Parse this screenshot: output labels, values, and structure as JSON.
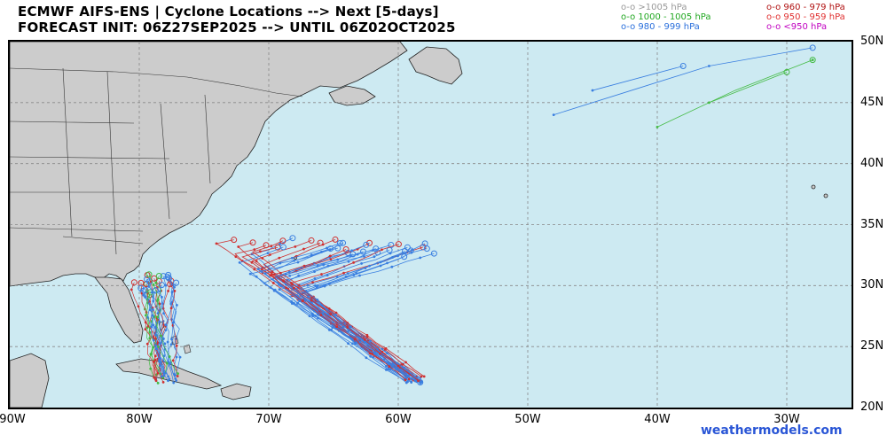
{
  "header": {
    "title_line1": "ECMWF AIFS-ENS | Cyclone Locations --> Next [5-days]",
    "title_line2": "FORECAST INIT: 06Z27SEP2025 --> UNTIL 06Z02OCT2025"
  },
  "legend": {
    "left": [
      {
        "marker": "o-o",
        "label": ">1005 hPa",
        "color": "#999999"
      },
      {
        "marker": "o-o",
        "label": "1000 - 1005 hPa",
        "color": "#22a822"
      },
      {
        "marker": "o-o",
        "label": "980 - 999 hPa",
        "color": "#2a6fdc"
      }
    ],
    "right": [
      {
        "marker": "o-o",
        "label": "960 - 979 hPa",
        "color": "#b01010"
      },
      {
        "marker": "o-o",
        "label": "950 - 959 hPa",
        "color": "#e03030"
      },
      {
        "marker": "o-o",
        "label": "<950 hPa",
        "color": "#c000c0"
      }
    ]
  },
  "colors": {
    "ocean": "#cdeaf2",
    "land": "#cccccc",
    "grid": "#888888",
    "track_blue": "#3a7fe0",
    "track_red": "#d03030",
    "track_green": "#44bb44",
    "track_gray": "#999999"
  },
  "map": {
    "lon_range": [
      -90,
      -25
    ],
    "lat_range": [
      20,
      50
    ],
    "lat_labels": [
      {
        "lat": 50,
        "text": "50N"
      },
      {
        "lat": 45,
        "text": "45N"
      },
      {
        "lat": 40,
        "text": "40N"
      },
      {
        "lat": 35,
        "text": "35N"
      },
      {
        "lat": 30,
        "text": "30N"
      },
      {
        "lat": 25,
        "text": "25N"
      },
      {
        "lat": 20,
        "text": "20N"
      }
    ],
    "lon_labels": [
      {
        "lon": -90,
        "text": "90W"
      },
      {
        "lon": -80,
        "text": "80W"
      },
      {
        "lon": -70,
        "text": "70W"
      },
      {
        "lon": -60,
        "text": "60W"
      },
      {
        "lon": -50,
        "text": "50W"
      },
      {
        "lon": -40,
        "text": "40W"
      },
      {
        "lon": -30,
        "text": "30W"
      }
    ]
  },
  "credit": "weathermodels.com"
}
